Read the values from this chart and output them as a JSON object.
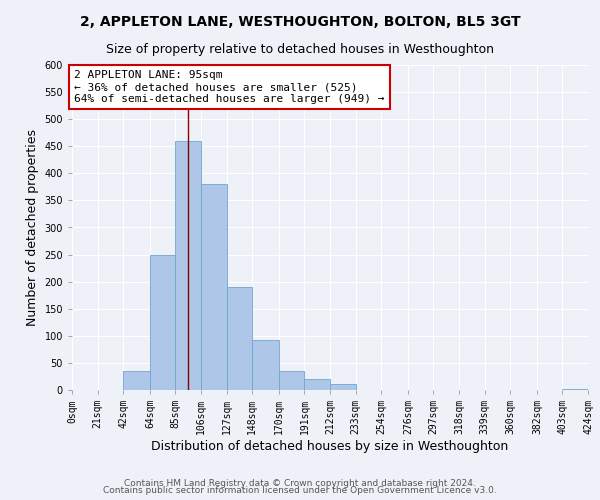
{
  "title_main": "2, APPLETON LANE, WESTHOUGHTON, BOLTON, BL5 3GT",
  "title_sub": "Size of property relative to detached houses in Westhoughton",
  "xlabel": "Distribution of detached houses by size in Westhoughton",
  "ylabel": "Number of detached properties",
  "bin_edges": [
    0,
    21,
    42,
    64,
    85,
    106,
    127,
    148,
    170,
    191,
    212,
    233,
    254,
    276,
    297,
    318,
    339,
    360,
    382,
    403,
    424
  ],
  "bin_counts": [
    0,
    0,
    35,
    250,
    460,
    380,
    190,
    92,
    35,
    20,
    12,
    0,
    0,
    0,
    0,
    0,
    0,
    0,
    0,
    2
  ],
  "bar_color": "#aec6e8",
  "bar_edge_color": "#6fa8d0",
  "property_size": 95,
  "vline_color": "#8b0000",
  "annotation_line1": "2 APPLETON LANE: 95sqm",
  "annotation_line2": "← 36% of detached houses are smaller (525)",
  "annotation_line3": "64% of semi-detached houses are larger (949) →",
  "annotation_box_color": "#ffffff",
  "annotation_box_edge_color": "#cc0000",
  "ylim": [
    0,
    600
  ],
  "yticks": [
    0,
    50,
    100,
    150,
    200,
    250,
    300,
    350,
    400,
    450,
    500,
    550,
    600
  ],
  "tick_labels": [
    "0sqm",
    "21sqm",
    "42sqm",
    "64sqm",
    "85sqm",
    "106sqm",
    "127sqm",
    "148sqm",
    "170sqm",
    "191sqm",
    "212sqm",
    "233sqm",
    "254sqm",
    "276sqm",
    "297sqm",
    "318sqm",
    "339sqm",
    "360sqm",
    "382sqm",
    "403sqm",
    "424sqm"
  ],
  "footer_line1": "Contains HM Land Registry data © Crown copyright and database right 2024.",
  "footer_line2": "Contains public sector information licensed under the Open Government Licence v3.0.",
  "background_color": "#eef2f8",
  "grid_color": "#ffffff",
  "title_fontsize": 10,
  "subtitle_fontsize": 9,
  "axis_label_fontsize": 9,
  "tick_fontsize": 7,
  "annotation_fontsize": 8,
  "footer_fontsize": 6.5
}
